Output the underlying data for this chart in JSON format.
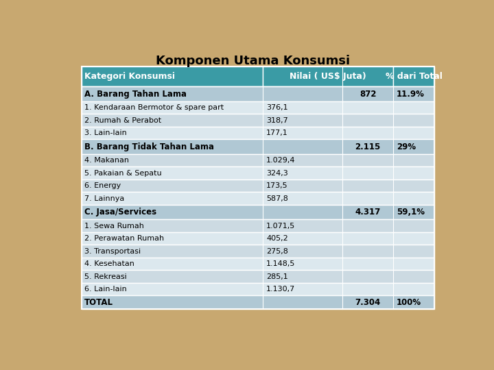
{
  "title": "Komponen Utama Konsumsi",
  "title_fontsize": 13,
  "background_color": "#c8a870",
  "header_bg": "#3a9ba5",
  "header_text_color": "#ffffff",
  "header_fontsize": 9,
  "category_bg": "#b0c8d4",
  "subrow_bg_light": "#dce8ee",
  "subrow_bg_dark": "#ccdae2",
  "total_bg": "#b0c8d4",
  "rows": [
    {
      "label": "A. Barang Tahan Lama",
      "val1": "",
      "val2": "872",
      "pct": "11.9%",
      "type": "category"
    },
    {
      "label": "1. Kendaraan Bermotor & spare part",
      "val1": "376,1",
      "val2": "",
      "pct": "",
      "type": "sub"
    },
    {
      "label": "2. Rumah & Perabot",
      "val1": "318,7",
      "val2": "",
      "pct": "",
      "type": "sub"
    },
    {
      "label": "3. Lain-lain",
      "val1": "177,1",
      "val2": "",
      "pct": "",
      "type": "sub"
    },
    {
      "label": "B. Barang Tidak Tahan Lama",
      "val1": "",
      "val2": "2.115",
      "pct": "29%",
      "type": "category"
    },
    {
      "label": "4. Makanan",
      "val1": "1.029,4",
      "val2": "",
      "pct": "",
      "type": "sub"
    },
    {
      "label": "5. Pakaian & Sepatu",
      "val1": "324,3",
      "val2": "",
      "pct": "",
      "type": "sub"
    },
    {
      "label": "6. Energy",
      "val1": "173,5",
      "val2": "",
      "pct": "",
      "type": "sub"
    },
    {
      "label": "7. Lainnya",
      "val1": "587,8",
      "val2": "",
      "pct": "",
      "type": "sub"
    },
    {
      "label": "C. Jasa/Services",
      "val1": "",
      "val2": "4.317",
      "pct": "59,1%",
      "type": "category"
    },
    {
      "label": "1. Sewa Rumah",
      "val1": "1.071,5",
      "val2": "",
      "pct": "",
      "type": "sub"
    },
    {
      "label": "2. Perawatan Rumah",
      "val1": "405,2",
      "val2": "",
      "pct": "",
      "type": "sub"
    },
    {
      "label": "3. Transportasi",
      "val1": "275,8",
      "val2": "",
      "pct": "",
      "type": "sub"
    },
    {
      "label": "4. Kesehatan",
      "val1": "1.148,5",
      "val2": "",
      "pct": "",
      "type": "sub"
    },
    {
      "label": "5. Rekreasi",
      "val1": "285,1",
      "val2": "",
      "pct": "",
      "type": "sub"
    },
    {
      "label": "6. Lain-lain",
      "val1": "1.130,7",
      "val2": "",
      "pct": "",
      "type": "sub"
    },
    {
      "label": "TOTAL",
      "val1": "",
      "val2": "7.304",
      "pct": "100%",
      "type": "total"
    }
  ]
}
